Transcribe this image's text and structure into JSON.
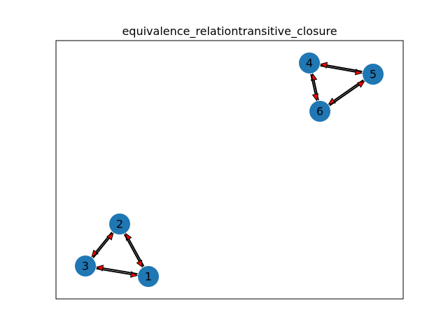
{
  "figure": {
    "title": "equivalence_relationtransitive_closure"
  },
  "graph": {
    "node_color": "#1f77b4",
    "edge_color": "#000000",
    "arrow_color": "#ff0000",
    "frame_color": "#000000",
    "nodes": [
      {
        "id": "1",
        "label": "1"
      },
      {
        "id": "2",
        "label": "2"
      },
      {
        "id": "3",
        "label": "3"
      },
      {
        "id": "4",
        "label": "4"
      },
      {
        "id": "5",
        "label": "5"
      },
      {
        "id": "6",
        "label": "6"
      }
    ],
    "edges": [
      {
        "source": "1",
        "target": "2"
      },
      {
        "source": "2",
        "target": "1"
      },
      {
        "source": "2",
        "target": "3"
      },
      {
        "source": "3",
        "target": "2"
      },
      {
        "source": "3",
        "target": "1"
      },
      {
        "source": "1",
        "target": "3"
      },
      {
        "source": "4",
        "target": "5"
      },
      {
        "source": "5",
        "target": "4"
      },
      {
        "source": "5",
        "target": "6"
      },
      {
        "source": "6",
        "target": "5"
      },
      {
        "source": "6",
        "target": "4"
      },
      {
        "source": "4",
        "target": "6"
      }
    ]
  }
}
